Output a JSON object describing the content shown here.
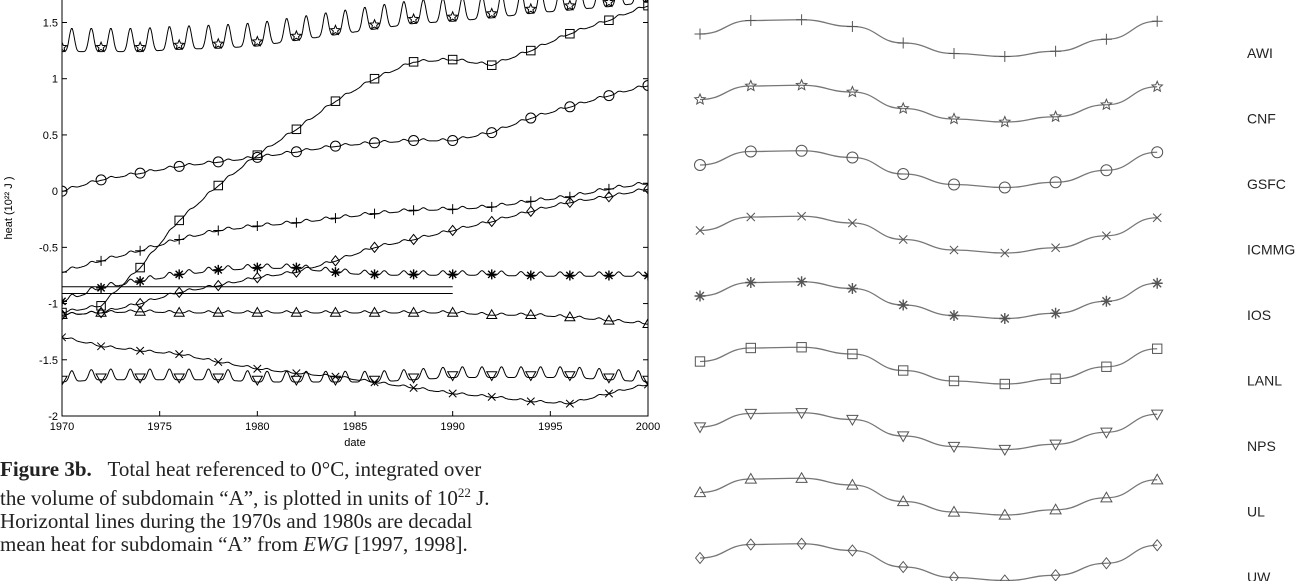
{
  "chart_data": {
    "type": "line",
    "xlabel": "date",
    "ylabel": "heat (10²² J )",
    "xlim": [
      1970,
      2000
    ],
    "ylim": [
      -2,
      1.7
    ],
    "x_ticks": [
      "1970",
      "1975",
      "1980",
      "1985",
      "1990",
      "1995",
      "2000"
    ],
    "y_ticks": [
      "-2",
      "-1.5",
      "-1",
      "-0.5",
      "0",
      "0.5",
      "1",
      "1.5"
    ],
    "series": [
      {
        "name": "AWI",
        "marker": "plus",
        "x": [
          1970,
          1972,
          1974,
          1976,
          1978,
          1980,
          1982,
          1984,
          1986,
          1988,
          1990,
          1992,
          1994,
          1996,
          1998,
          2000
        ],
        "values": [
          -0.72,
          -0.62,
          -0.53,
          -0.43,
          -0.35,
          -0.31,
          -0.28,
          -0.24,
          -0.2,
          -0.17,
          -0.16,
          -0.14,
          -0.09,
          -0.05,
          0.02,
          0.07
        ],
        "seasonal": 0.015
      },
      {
        "name": "CNF",
        "marker": "star",
        "x": [
          1970,
          1972,
          1974,
          1976,
          1978,
          1980,
          1982,
          1984,
          1986,
          1988,
          1990,
          1992,
          1994,
          1996,
          1998,
          2000
        ],
        "values": [
          1.28,
          1.28,
          1.28,
          1.3,
          1.31,
          1.33,
          1.38,
          1.43,
          1.48,
          1.53,
          1.55,
          1.58,
          1.62,
          1.65,
          1.68,
          1.72
        ],
        "seasonal": 0.13
      },
      {
        "name": "GSFC",
        "marker": "circle",
        "x": [
          1970,
          1972,
          1974,
          1976,
          1978,
          1980,
          1982,
          1984,
          1986,
          1988,
          1990,
          1992,
          1994,
          1996,
          1998,
          2000
        ],
        "values": [
          0.0,
          0.1,
          0.16,
          0.22,
          0.26,
          0.3,
          0.35,
          0.4,
          0.43,
          0.45,
          0.45,
          0.52,
          0.65,
          0.75,
          0.85,
          0.94
        ],
        "seasonal": 0.012
      },
      {
        "name": "ICMMG",
        "marker": "x",
        "x": [
          1970,
          1972,
          1974,
          1976,
          1978,
          1980,
          1982,
          1984,
          1986,
          1988,
          1990,
          1992,
          1994,
          1996,
          1998,
          2000
        ],
        "values": [
          -1.3,
          -1.38,
          -1.42,
          -1.45,
          -1.52,
          -1.58,
          -1.62,
          -1.65,
          -1.7,
          -1.75,
          -1.8,
          -1.83,
          -1.87,
          -1.89,
          -1.8,
          -1.72
        ],
        "seasonal": 0.01
      },
      {
        "name": "IOS",
        "marker": "asterisk",
        "x": [
          1970,
          1972,
          1974,
          1976,
          1978,
          1980,
          1982,
          1984,
          1986,
          1988,
          1990,
          1992,
          1994,
          1996,
          1998,
          2000
        ],
        "values": [
          -0.98,
          -0.86,
          -0.8,
          -0.74,
          -0.7,
          -0.68,
          -0.68,
          -0.72,
          -0.74,
          -0.74,
          -0.74,
          -0.74,
          -0.75,
          -0.75,
          -0.75,
          -0.75
        ],
        "seasonal": 0.025
      },
      {
        "name": "LANL",
        "marker": "square",
        "x": [
          1970,
          1972,
          1974,
          1976,
          1978,
          1980,
          1982,
          1984,
          1986,
          1988,
          1990,
          1992,
          1994,
          1996,
          1998,
          2000
        ],
        "values": [
          -1.08,
          -1.02,
          -0.68,
          -0.26,
          0.05,
          0.32,
          0.55,
          0.8,
          1.0,
          1.15,
          1.17,
          1.12,
          1.25,
          1.4,
          1.52,
          1.65
        ],
        "seasonal": 0.012
      },
      {
        "name": "NPS",
        "marker": "triangle-down",
        "x": [
          1970,
          1972,
          1974,
          1976,
          1978,
          1980,
          1982,
          1984,
          1986,
          1988,
          1990,
          1992,
          1994,
          1996,
          1998,
          2000
        ],
        "values": [
          -1.68,
          -1.66,
          -1.66,
          -1.66,
          -1.66,
          -1.68,
          -1.68,
          -1.68,
          -1.68,
          -1.66,
          -1.64,
          -1.64,
          -1.64,
          -1.64,
          -1.66,
          -1.68
        ],
        "seasonal": 0.06
      },
      {
        "name": "UL",
        "marker": "triangle-up",
        "x": [
          1970,
          1972,
          1974,
          1976,
          1978,
          1980,
          1982,
          1984,
          1986,
          1988,
          1990,
          1992,
          1994,
          1996,
          1998,
          2000
        ],
        "values": [
          -1.1,
          -1.08,
          -1.07,
          -1.08,
          -1.08,
          -1.08,
          -1.08,
          -1.08,
          -1.08,
          -1.08,
          -1.08,
          -1.1,
          -1.1,
          -1.12,
          -1.15,
          -1.18
        ],
        "seasonal": 0.012
      },
      {
        "name": "UW",
        "marker": "diamond",
        "x": [
          1970,
          1972,
          1974,
          1976,
          1978,
          1980,
          1982,
          1984,
          1986,
          1988,
          1990,
          1992,
          1994,
          1996,
          1998,
          2000
        ],
        "values": [
          -1.1,
          -1.08,
          -1.0,
          -0.9,
          -0.84,
          -0.77,
          -0.72,
          -0.62,
          -0.5,
          -0.43,
          -0.35,
          -0.27,
          -0.18,
          -0.1,
          -0.05,
          0.02
        ],
        "seasonal": 0.012
      }
    ],
    "decadal_lines": [
      {
        "x": [
          1970,
          1990
        ],
        "value": -0.85
      },
      {
        "x": [
          1970,
          1990
        ],
        "value": -0.91
      }
    ]
  },
  "legend": {
    "entries": [
      "AWI",
      "CNF",
      "GSFC",
      "ICMMG",
      "IOS",
      "LANL",
      "NPS",
      "UL",
      "UW"
    ],
    "line_color": "#777777",
    "marker_color": "#555555"
  },
  "caption": {
    "label": "Figure 3b.",
    "line1": "Total heat referenced to 0°C, integrated over",
    "line2_pre": "the volume of subdomain “A”, is plotted in units of 10",
    "line2_sup": "22",
    "line2_post": " J.",
    "line3": "Horizontal lines during the 1970s and 1980s are decadal",
    "line4_pre": "mean heat for subdomain “A” from ",
    "line4_em": "EWG",
    "line4_post": " [1997, 1998]."
  },
  "colors": {
    "axis": "#000000",
    "series": "#000000",
    "text": "#222222"
  }
}
